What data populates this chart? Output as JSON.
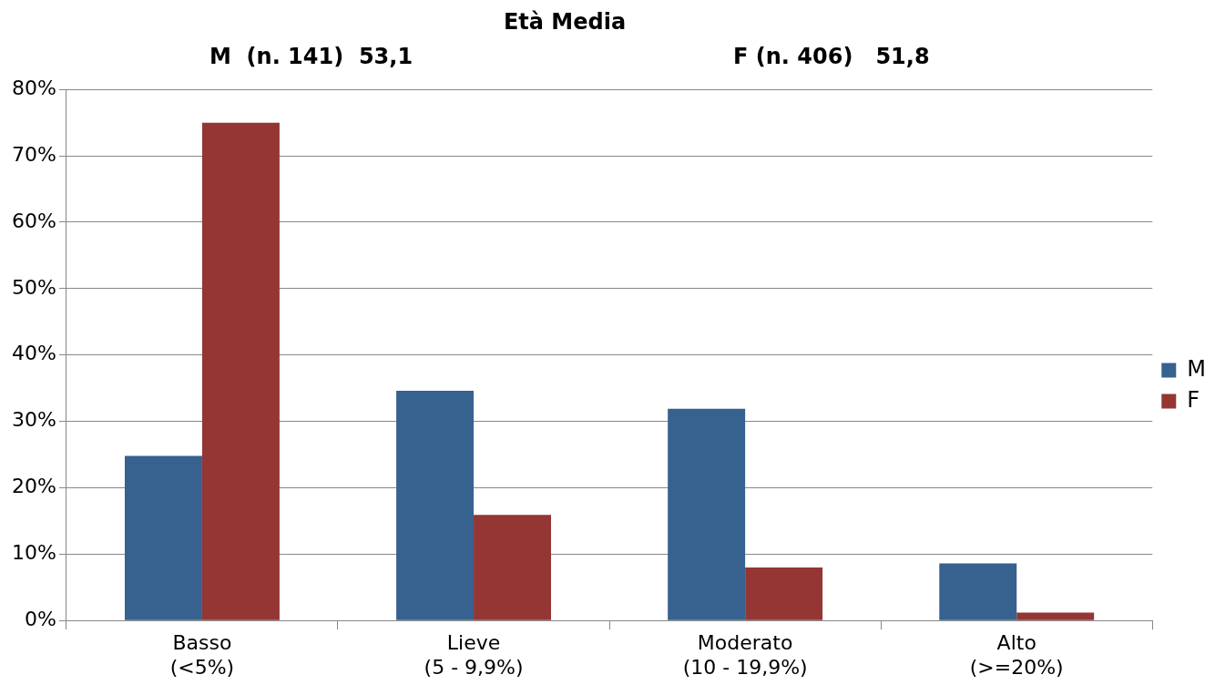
{
  "chart_data": {
    "type": "bar",
    "title": "Età Media",
    "annotations": [
      "M  (n. 141)  53,1",
      "F (n. 406)   51,8"
    ],
    "categories": [
      "Basso (<5%)",
      "Lieve (5 - 9,9%)",
      "Moderato (10 - 19,9%)",
      "Alto (>=20%)"
    ],
    "series": [
      {
        "name": "M",
        "color": "#37618f",
        "values": [
          24.8,
          34.6,
          31.9,
          8.6
        ]
      },
      {
        "name": "F",
        "color": "#943634",
        "values": [
          75,
          15.9,
          8,
          1.2
        ]
      }
    ],
    "ylim": [
      0,
      80
    ],
    "yticks": [
      {
        "value": 0,
        "label": "0%"
      },
      {
        "value": 10,
        "label": "10%"
      },
      {
        "value": 20,
        "label": "20%"
      },
      {
        "value": 30,
        "label": "30%"
      },
      {
        "value": 40,
        "label": "40%"
      },
      {
        "value": 50,
        "label": "50%"
      },
      {
        "value": 60,
        "label": "60%"
      },
      {
        "value": 70,
        "label": "70%"
      },
      {
        "value": 80,
        "label": "80%"
      }
    ],
    "grid": "y",
    "legend": "right"
  }
}
